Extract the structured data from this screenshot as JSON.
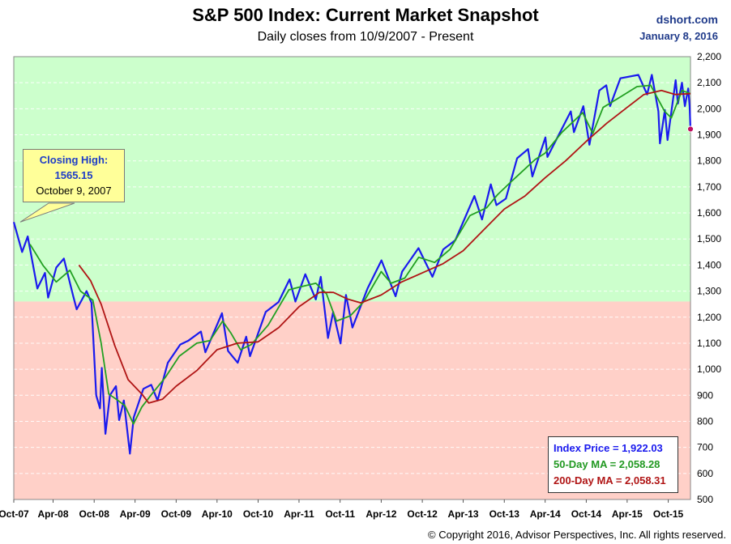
{
  "header": {
    "title": "S&P 500 Index: Current Market Snapshot",
    "subtitle": "Daily closes from 10/9/2007 - Present",
    "source": "dshort.com",
    "source_date": "January 8, 2016"
  },
  "callout": {
    "title": "Closing High:",
    "value": "1565.15",
    "date": "October 9, 2007"
  },
  "legend": {
    "index_price": "Index Price =  1,922.03",
    "ma50": "50-Day MA = 2,058.28",
    "ma200": "200-Day MA = 2,058.31"
  },
  "footer": {
    "copyright": "© Copyright 2016, Advisor Perspectives, Inc. All rights reserved."
  },
  "colors": {
    "index": "#1a1aee",
    "ma50": "#22a022",
    "ma200": "#b01515",
    "upper_zone": "#ccffcc",
    "lower_zone": "#ffd0c8"
  },
  "chart_data": {
    "type": "line",
    "title": "S&P 500 Index: Current Market Snapshot",
    "subtitle": "Daily closes from 10/9/2007 - Present",
    "x_tick_labels": [
      "Oct-07",
      "Apr-08",
      "Oct-08",
      "Apr-09",
      "Oct-09",
      "Apr-10",
      "Oct-10",
      "Apr-11",
      "Oct-11",
      "Apr-12",
      "Oct-12",
      "Apr-13",
      "Oct-13",
      "Apr-14",
      "Oct-14",
      "Apr-15",
      "Oct-15"
    ],
    "y_tick_labels": [
      "500",
      "600",
      "700",
      "800",
      "900",
      "1,000",
      "1,100",
      "1,200",
      "1,300",
      "1,400",
      "1,500",
      "1,600",
      "1,700",
      "1,800",
      "1,900",
      "2,000",
      "2,100",
      "2,200"
    ],
    "ylim": [
      500,
      2200
    ],
    "xlim": [
      "2007-10-09",
      "2016-01-08"
    ],
    "zone_boundary": 1260,
    "grid": "horizontal",
    "series": [
      {
        "name": "Index Price",
        "x": [
          "2007-10-09",
          "2007-11-15",
          "2007-12-10",
          "2008-01-22",
          "2008-02-25",
          "2008-03-10",
          "2008-04-15",
          "2008-05-19",
          "2008-06-30",
          "2008-07-15",
          "2008-08-28",
          "2008-09-19",
          "2008-10-10",
          "2008-10-27",
          "2008-11-04",
          "2008-11-20",
          "2008-12-10",
          "2009-01-06",
          "2009-01-20",
          "2009-02-10",
          "2009-03-09",
          "2009-03-26",
          "2009-05-08",
          "2009-06-12",
          "2009-07-10",
          "2009-08-25",
          "2009-10-19",
          "2009-11-25",
          "2010-01-19",
          "2010-02-08",
          "2010-04-23",
          "2010-05-20",
          "2010-07-02",
          "2010-08-09",
          "2010-08-26",
          "2010-11-04",
          "2010-12-31",
          "2011-02-18",
          "2011-03-16",
          "2011-04-29",
          "2011-06-15",
          "2011-07-07",
          "2011-08-08",
          "2011-08-31",
          "2011-10-03",
          "2011-10-27",
          "2011-11-25",
          "2012-01-31",
          "2012-04-02",
          "2012-06-04",
          "2012-07-03",
          "2012-09-14",
          "2012-11-15",
          "2013-01-02",
          "2013-02-25",
          "2013-05-21",
          "2013-06-24",
          "2013-08-02",
          "2013-08-27",
          "2013-10-08",
          "2013-11-27",
          "2014-01-15",
          "2014-02-03",
          "2014-04-02",
          "2014-04-11",
          "2014-07-24",
          "2014-08-07",
          "2014-09-18",
          "2014-10-15",
          "2014-11-28",
          "2014-12-29",
          "2015-01-15",
          "2015-03-02",
          "2015-05-21",
          "2015-06-29",
          "2015-07-20",
          "2015-08-18",
          "2015-08-25",
          "2015-09-16",
          "2015-09-28",
          "2015-11-03",
          "2015-11-13",
          "2015-12-01",
          "2015-12-14",
          "2015-12-29",
          "2016-01-04",
          "2016-01-08"
        ],
        "values": [
          1565,
          1450,
          1510,
          1310,
          1370,
          1275,
          1390,
          1425,
          1280,
          1230,
          1300,
          1255,
          900,
          850,
          1005,
          752,
          900,
          935,
          805,
          880,
          676,
          815,
          925,
          940,
          880,
          1025,
          1095,
          1110,
          1145,
          1065,
          1215,
          1070,
          1025,
          1125,
          1050,
          1220,
          1258,
          1345,
          1260,
          1365,
          1268,
          1355,
          1120,
          1220,
          1099,
          1285,
          1160,
          1310,
          1418,
          1280,
          1375,
          1465,
          1355,
          1460,
          1495,
          1665,
          1575,
          1710,
          1630,
          1655,
          1810,
          1845,
          1740,
          1890,
          1815,
          1990,
          1910,
          2010,
          1862,
          2070,
          2090,
          2010,
          2117,
          2130,
          2055,
          2130,
          1990,
          1867,
          1995,
          1880,
          2110,
          2020,
          2100,
          2010,
          2078,
          2012,
          1922
        ]
      },
      {
        "name": "50-Day MA",
        "x": [
          "2007-12-20",
          "2008-02-15",
          "2008-04-15",
          "2008-06-15",
          "2008-08-01",
          "2008-09-25",
          "2008-11-01",
          "2008-12-05",
          "2009-01-15",
          "2009-02-15",
          "2009-03-25",
          "2009-05-01",
          "2009-06-15",
          "2009-08-15",
          "2009-10-15",
          "2010-01-01",
          "2010-03-01",
          "2010-04-26",
          "2010-06-01",
          "2010-07-15",
          "2010-09-01",
          "2010-11-15",
          "2011-02-15",
          "2011-04-01",
          "2011-06-15",
          "2011-08-01",
          "2011-09-15",
          "2011-11-15",
          "2012-01-15",
          "2012-04-01",
          "2012-05-15",
          "2012-07-15",
          "2012-09-15",
          "2012-11-25",
          "2013-02-01",
          "2013-05-01",
          "2013-07-15",
          "2013-09-01",
          "2013-11-01",
          "2014-02-15",
          "2014-04-01",
          "2014-06-15",
          "2014-09-15",
          "2014-10-30",
          "2014-12-15",
          "2015-03-01",
          "2015-05-15",
          "2015-07-15",
          "2015-09-15",
          "2015-10-15",
          "2015-12-01",
          "2016-01-08"
        ],
        "values": [
          1480,
          1400,
          1335,
          1380,
          1300,
          1265,
          1100,
          905,
          880,
          860,
          790,
          855,
          905,
          970,
          1050,
          1100,
          1110,
          1185,
          1140,
          1075,
          1095,
          1170,
          1305,
          1315,
          1330,
          1290,
          1185,
          1205,
          1260,
          1375,
          1330,
          1350,
          1430,
          1410,
          1460,
          1590,
          1620,
          1670,
          1720,
          1805,
          1830,
          1910,
          1985,
          1905,
          2005,
          2045,
          2085,
          2090,
          1990,
          1965,
          2070,
          2058
        ]
      },
      {
        "name": "200-Day MA",
        "x": [
          "2008-07-25",
          "2008-09-15",
          "2008-11-01",
          "2009-01-01",
          "2009-03-01",
          "2009-05-01",
          "2009-06-01",
          "2009-08-01",
          "2009-10-01",
          "2010-01-01",
          "2010-04-01",
          "2010-07-01",
          "2010-10-01",
          "2011-01-01",
          "2011-04-01",
          "2011-07-01",
          "2011-09-01",
          "2011-11-01",
          "2012-01-01",
          "2012-04-01",
          "2012-07-01",
          "2012-10-01",
          "2013-01-01",
          "2013-04-01",
          "2013-07-01",
          "2013-10-01",
          "2014-01-01",
          "2014-04-01",
          "2014-07-01",
          "2014-10-01",
          "2015-01-01",
          "2015-04-01",
          "2015-06-15",
          "2015-09-01",
          "2015-11-01",
          "2016-01-08"
        ],
        "values": [
          1400,
          1340,
          1250,
          1090,
          960,
          905,
          870,
          885,
          935,
          995,
          1075,
          1100,
          1105,
          1160,
          1240,
          1295,
          1295,
          1270,
          1255,
          1285,
          1335,
          1370,
          1405,
          1455,
          1535,
          1615,
          1665,
          1735,
          1800,
          1875,
          1945,
          2005,
          2055,
          2070,
          2055,
          2058
        ]
      }
    ]
  }
}
